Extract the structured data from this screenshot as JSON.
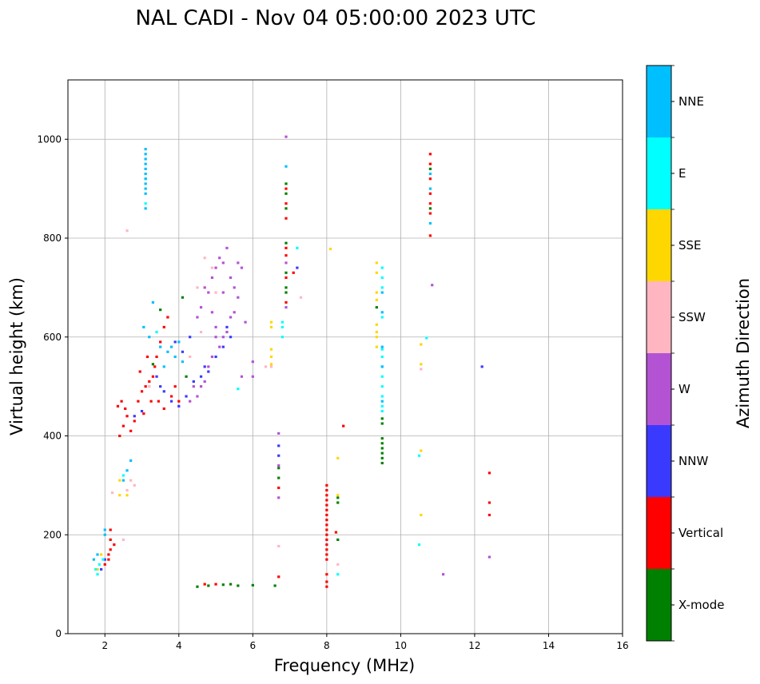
{
  "chart_data": {
    "type": "scatter",
    "title": "NAL CADI - Nov 04 05:00:00 2023 UTC",
    "xlabel": "Frequency (MHz)",
    "ylabel": "Virtual height (km)",
    "xlim": [
      1,
      16
    ],
    "ylim": [
      0,
      1120
    ],
    "xticks": [
      2,
      4,
      6,
      8,
      10,
      12,
      14,
      16
    ],
    "yticks": [
      0,
      200,
      400,
      600,
      800,
      1000
    ],
    "grid": true,
    "colorbar": {
      "label": "Azimuth Direction",
      "categories": [
        "X-mode",
        "Vertical",
        "NNW",
        "W",
        "SSW",
        "SSE",
        "E",
        "NNE"
      ],
      "colors": [
        "#008000",
        "#ff0000",
        "#3a3aff",
        "#b452d4",
        "#ffb6c1",
        "#ffd700",
        "#00ffff",
        "#00bfff"
      ]
    },
    "marker_width_mhz": 0.07,
    "marker_height_km": 5,
    "series": [
      {
        "name": "X-mode",
        "points": [
          [
            9.5,
            345
          ],
          [
            9.5,
            355
          ],
          [
            9.5,
            365
          ],
          [
            9.5,
            375
          ],
          [
            9.5,
            385
          ],
          [
            9.5,
            395
          ],
          [
            9.5,
            425
          ],
          [
            9.5,
            435
          ],
          [
            6.9,
            690
          ],
          [
            6.9,
            700
          ],
          [
            6.9,
            910
          ],
          [
            6.9,
            890
          ],
          [
            6.9,
            790
          ],
          [
            6.9,
            860
          ],
          [
            6.9,
            730
          ],
          [
            4.5,
            95
          ],
          [
            4.8,
            97
          ],
          [
            5.2,
            99
          ],
          [
            5.4,
            100
          ],
          [
            5.6,
            97
          ],
          [
            6.0,
            98
          ],
          [
            6.6,
            97
          ],
          [
            8.3,
            275
          ],
          [
            8.3,
            265
          ],
          [
            8.3,
            190
          ],
          [
            6.7,
            315
          ],
          [
            6.7,
            335
          ],
          [
            4.1,
            680
          ],
          [
            3.5,
            655
          ],
          [
            4.2,
            520
          ],
          [
            3.3,
            545
          ],
          [
            10.8,
            860
          ],
          [
            10.8,
            940
          ],
          [
            9.35,
            660
          ]
        ]
      },
      {
        "name": "Vertical",
        "points": [
          [
            8.0,
            95
          ],
          [
            8.0,
            105
          ],
          [
            8.0,
            120
          ],
          [
            8.0,
            150
          ],
          [
            8.0,
            160
          ],
          [
            8.0,
            170
          ],
          [
            8.0,
            180
          ],
          [
            8.0,
            190
          ],
          [
            8.0,
            200
          ],
          [
            8.0,
            210
          ],
          [
            8.0,
            220
          ],
          [
            8.0,
            230
          ],
          [
            8.0,
            240
          ],
          [
            8.0,
            250
          ],
          [
            8.0,
            260
          ],
          [
            8.0,
            270
          ],
          [
            8.0,
            280
          ],
          [
            8.0,
            290
          ],
          [
            8.0,
            300
          ],
          [
            12.4,
            240
          ],
          [
            12.4,
            265
          ],
          [
            12.4,
            325
          ],
          [
            8.45,
            420
          ],
          [
            8.25,
            205
          ],
          [
            10.8,
            805
          ],
          [
            10.8,
            850
          ],
          [
            10.8,
            870
          ],
          [
            10.8,
            890
          ],
          [
            10.8,
            920
          ],
          [
            10.8,
            950
          ],
          [
            10.8,
            970
          ],
          [
            6.9,
            670
          ],
          [
            6.9,
            720
          ],
          [
            6.9,
            765
          ],
          [
            6.9,
            780
          ],
          [
            6.9,
            840
          ],
          [
            6.9,
            870
          ],
          [
            6.9,
            900
          ],
          [
            6.7,
            115
          ],
          [
            6.7,
            295
          ],
          [
            7.1,
            730
          ],
          [
            4.7,
            100
          ],
          [
            5.0,
            100
          ],
          [
            2.15,
            190
          ],
          [
            2.15,
            210
          ],
          [
            2.15,
            170
          ],
          [
            2.25,
            180
          ],
          [
            2.1,
            150
          ],
          [
            2.1,
            160
          ],
          [
            2.0,
            140
          ],
          [
            2.4,
            400
          ],
          [
            2.5,
            420
          ],
          [
            2.6,
            440
          ],
          [
            2.7,
            410
          ],
          [
            2.8,
            430
          ],
          [
            2.9,
            470
          ],
          [
            3.0,
            490
          ],
          [
            3.1,
            500
          ],
          [
            3.2,
            510
          ],
          [
            3.3,
            520
          ],
          [
            3.35,
            540
          ],
          [
            3.4,
            560
          ],
          [
            3.5,
            590
          ],
          [
            3.6,
            620
          ],
          [
            3.7,
            640
          ],
          [
            3.8,
            480
          ],
          [
            3.9,
            500
          ],
          [
            4.0,
            470
          ],
          [
            2.35,
            460
          ],
          [
            2.45,
            470
          ],
          [
            2.55,
            455
          ],
          [
            3.05,
            445
          ],
          [
            3.25,
            470
          ],
          [
            3.45,
            470
          ],
          [
            3.6,
            455
          ],
          [
            3.15,
            560
          ],
          [
            2.95,
            530
          ]
        ]
      },
      {
        "name": "NNW",
        "points": [
          [
            3.4,
            520
          ],
          [
            3.5,
            500
          ],
          [
            3.6,
            490
          ],
          [
            3.8,
            470
          ],
          [
            4.0,
            460
          ],
          [
            4.2,
            480
          ],
          [
            4.4,
            510
          ],
          [
            4.6,
            520
          ],
          [
            4.8,
            530
          ],
          [
            5.0,
            560
          ],
          [
            5.2,
            580
          ],
          [
            5.4,
            600
          ],
          [
            3.9,
            590
          ],
          [
            4.1,
            570
          ],
          [
            4.3,
            600
          ],
          [
            6.7,
            380
          ],
          [
            6.7,
            360
          ],
          [
            12.2,
            540
          ],
          [
            7.2,
            740
          ],
          [
            2.8,
            440
          ],
          [
            3.0,
            450
          ],
          [
            2.0,
            150
          ],
          [
            1.9,
            130
          ],
          [
            4.7,
            540
          ],
          [
            5.3,
            620
          ]
        ]
      },
      {
        "name": "W",
        "points": [
          [
            4.5,
            640
          ],
          [
            4.6,
            660
          ],
          [
            4.7,
            700
          ],
          [
            4.8,
            690
          ],
          [
            4.9,
            720
          ],
          [
            5.0,
            740
          ],
          [
            5.1,
            760
          ],
          [
            5.2,
            750
          ],
          [
            5.3,
            780
          ],
          [
            5.4,
            720
          ],
          [
            5.5,
            700
          ],
          [
            5.6,
            680
          ],
          [
            5.7,
            740
          ],
          [
            5.5,
            650
          ],
          [
            5.4,
            640
          ],
          [
            5.3,
            610
          ],
          [
            5.2,
            600
          ],
          [
            5.1,
            580
          ],
          [
            5.0,
            620
          ],
          [
            4.9,
            560
          ],
          [
            4.8,
            540
          ],
          [
            4.7,
            510
          ],
          [
            4.6,
            500
          ],
          [
            4.5,
            480
          ],
          [
            4.4,
            500
          ],
          [
            4.3,
            470
          ],
          [
            6.0,
            550
          ],
          [
            6.0,
            520
          ],
          [
            5.7,
            520
          ],
          [
            6.9,
            1005
          ],
          [
            6.9,
            750
          ],
          [
            6.9,
            660
          ],
          [
            6.7,
            275
          ],
          [
            6.7,
            340
          ],
          [
            6.7,
            405
          ],
          [
            12.4,
            155
          ],
          [
            11.15,
            120
          ],
          [
            10.85,
            705
          ],
          [
            5.0,
            600
          ],
          [
            5.2,
            690
          ],
          [
            4.9,
            650
          ],
          [
            5.6,
            750
          ],
          [
            5.8,
            630
          ]
        ]
      },
      {
        "name": "SSW",
        "points": [
          [
            2.6,
            290
          ],
          [
            2.7,
            310
          ],
          [
            2.8,
            300
          ],
          [
            2.2,
            285
          ],
          [
            2.6,
            815
          ],
          [
            8.3,
            140
          ],
          [
            10.55,
            535
          ],
          [
            6.5,
            540
          ],
          [
            6.35,
            540
          ],
          [
            6.7,
            177
          ],
          [
            7.3,
            680
          ],
          [
            4.7,
            760
          ],
          [
            4.9,
            740
          ],
          [
            4.5,
            700
          ],
          [
            2.5,
            190
          ],
          [
            4.3,
            560
          ],
          [
            5.0,
            690
          ],
          [
            3.2,
            500
          ],
          [
            4.6,
            610
          ]
        ]
      },
      {
        "name": "SSE",
        "points": [
          [
            9.35,
            750
          ],
          [
            9.35,
            730
          ],
          [
            9.35,
            690
          ],
          [
            9.35,
            675
          ],
          [
            9.35,
            625
          ],
          [
            9.35,
            610
          ],
          [
            9.35,
            600
          ],
          [
            9.35,
            580
          ],
          [
            10.55,
            545
          ],
          [
            10.55,
            585
          ],
          [
            10.55,
            370
          ],
          [
            10.55,
            240
          ],
          [
            6.5,
            630
          ],
          [
            6.5,
            575
          ],
          [
            6.5,
            560
          ],
          [
            6.5,
            545
          ],
          [
            8.3,
            355
          ],
          [
            8.1,
            778
          ],
          [
            8.3,
            280
          ],
          [
            2.4,
            280
          ],
          [
            2.6,
            280
          ],
          [
            2.4,
            310
          ],
          [
            1.8,
            130
          ],
          [
            1.9,
            160
          ],
          [
            6.5,
            620
          ]
        ]
      },
      {
        "name": "E",
        "points": [
          [
            9.5,
            450
          ],
          [
            9.5,
            460
          ],
          [
            9.5,
            480
          ],
          [
            9.5,
            500
          ],
          [
            9.5,
            520
          ],
          [
            9.5,
            540
          ],
          [
            9.5,
            560
          ],
          [
            9.5,
            575
          ],
          [
            9.5,
            640
          ],
          [
            9.5,
            700
          ],
          [
            9.5,
            720
          ],
          [
            9.5,
            740
          ],
          [
            10.5,
            360
          ],
          [
            10.5,
            180
          ],
          [
            10.7,
            598
          ],
          [
            8.3,
            120
          ],
          [
            6.8,
            600
          ],
          [
            6.8,
            620
          ],
          [
            6.8,
            630
          ],
          [
            7.2,
            780
          ],
          [
            1.75,
            130
          ],
          [
            1.8,
            120
          ],
          [
            1.85,
            140
          ],
          [
            1.95,
            150
          ],
          [
            3.1,
            870
          ],
          [
            3.1,
            920
          ],
          [
            2.5,
            320
          ],
          [
            3.4,
            610
          ],
          [
            5.6,
            495
          ]
        ]
      },
      {
        "name": "NNE",
        "points": [
          [
            3.1,
            980
          ],
          [
            3.1,
            970
          ],
          [
            3.1,
            960
          ],
          [
            3.1,
            950
          ],
          [
            3.1,
            940
          ],
          [
            3.1,
            930
          ],
          [
            3.1,
            920
          ],
          [
            3.1,
            910
          ],
          [
            3.1,
            900
          ],
          [
            3.1,
            890
          ],
          [
            3.1,
            860
          ],
          [
            10.8,
            830
          ],
          [
            10.8,
            900
          ],
          [
            10.8,
            930
          ],
          [
            6.9,
            945
          ],
          [
            9.5,
            470
          ],
          [
            9.5,
            540
          ],
          [
            9.5,
            580
          ],
          [
            9.5,
            650
          ],
          [
            9.5,
            690
          ],
          [
            4.0,
            590
          ],
          [
            4.1,
            550
          ],
          [
            3.7,
            570
          ],
          [
            3.8,
            580
          ],
          [
            3.5,
            580
          ],
          [
            3.6,
            540
          ],
          [
            3.3,
            670
          ],
          [
            3.2,
            600
          ],
          [
            3.05,
            620
          ],
          [
            2.6,
            330
          ],
          [
            2.5,
            310
          ],
          [
            2.7,
            350
          ],
          [
            1.7,
            150
          ],
          [
            1.8,
            160
          ],
          [
            2.0,
            200
          ],
          [
            2.0,
            210
          ],
          [
            3.9,
            560
          ]
        ]
      }
    ]
  }
}
